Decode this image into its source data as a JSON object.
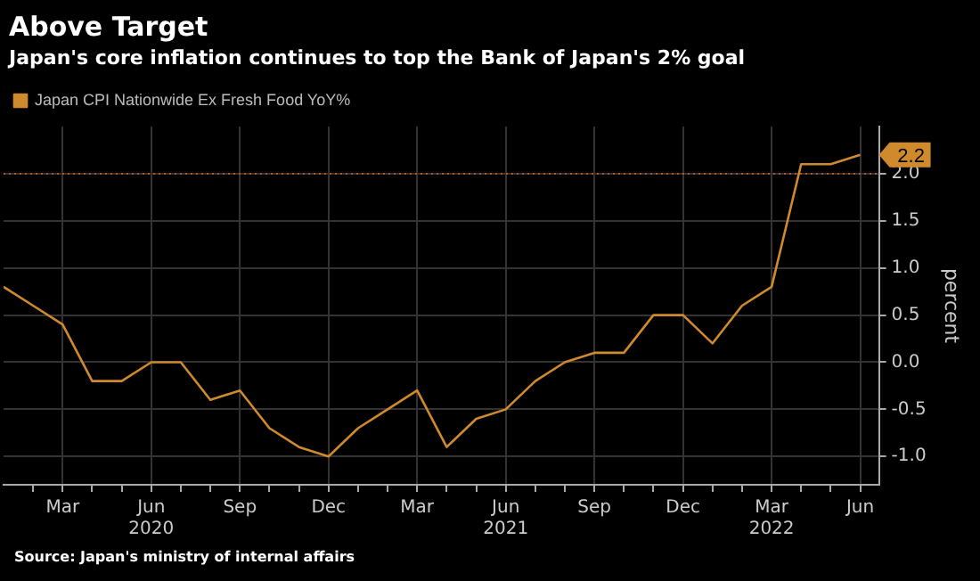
{
  "chart_data": {
    "type": "line",
    "title": "Above Target",
    "subtitle": "Japan's core inflation continues to top the Bank of Japan's 2% goal",
    "ylabel": "percent",
    "x": [
      "2020-01",
      "2020-02",
      "2020-03",
      "2020-04",
      "2020-05",
      "2020-06",
      "2020-07",
      "2020-08",
      "2020-09",
      "2020-10",
      "2020-11",
      "2020-12",
      "2021-01",
      "2021-02",
      "2021-03",
      "2021-04",
      "2021-05",
      "2021-06",
      "2021-07",
      "2021-08",
      "2021-09",
      "2021-10",
      "2021-11",
      "2021-12",
      "2022-01",
      "2022-02",
      "2022-03",
      "2022-04",
      "2022-05",
      "2022-06"
    ],
    "series": [
      {
        "name": "Japan CPI Nationwide Ex Fresh Food YoY%",
        "color": "#d08a2e",
        "values": [
          0.8,
          0.6,
          0.4,
          -0.2,
          -0.2,
          0.0,
          0.0,
          -0.4,
          -0.3,
          -0.7,
          -0.9,
          -1.0,
          -0.7,
          -0.5,
          -0.3,
          -0.9,
          -0.6,
          -0.5,
          -0.2,
          0.0,
          0.1,
          0.1,
          0.5,
          0.5,
          0.2,
          0.6,
          0.8,
          2.1,
          2.1,
          2.2
        ],
        "value_labels": [
          null,
          null,
          null,
          null,
          null,
          null,
          null,
          null,
          null,
          null,
          null,
          null,
          null,
          null,
          null,
          null,
          null,
          null,
          null,
          null,
          null,
          null,
          null,
          null,
          null,
          null,
          null,
          null,
          null,
          "2.2"
        ]
      }
    ],
    "xlim": [
      "2020-01-01",
      "2022-06-20"
    ],
    "xticks": [
      {
        "value": "2020-02",
        "label": null
      },
      {
        "value": "2020-03",
        "label": "Mar"
      },
      {
        "value": "2020-04",
        "label": null
      },
      {
        "value": "2020-05",
        "label": null
      },
      {
        "value": "2020-06",
        "label": "Jun\n2020"
      },
      {
        "value": "2020-07",
        "label": null
      },
      {
        "value": "2020-08",
        "label": null
      },
      {
        "value": "2020-09",
        "label": "Sep"
      },
      {
        "value": "2020-10",
        "label": null
      },
      {
        "value": "2020-11",
        "label": null
      },
      {
        "value": "2020-12",
        "label": "Dec"
      },
      {
        "value": "2021-01",
        "label": null
      },
      {
        "value": "2021-02",
        "label": null
      },
      {
        "value": "2021-03",
        "label": "Mar"
      },
      {
        "value": "2021-04",
        "label": null
      },
      {
        "value": "2021-05",
        "label": null
      },
      {
        "value": "2021-06",
        "label": "Jun\n2021"
      },
      {
        "value": "2021-07",
        "label": null
      },
      {
        "value": "2021-08",
        "label": null
      },
      {
        "value": "2021-09",
        "label": "Sep"
      },
      {
        "value": "2021-10",
        "label": null
      },
      {
        "value": "2021-11",
        "label": null
      },
      {
        "value": "2021-12",
        "label": "Dec"
      },
      {
        "value": "2022-01",
        "label": null
      },
      {
        "value": "2022-02",
        "label": null
      },
      {
        "value": "2022-03",
        "label": "Mar\n2022"
      },
      {
        "value": "2022-04",
        "label": null
      },
      {
        "value": "2022-05",
        "label": null
      },
      {
        "value": "2022-06",
        "label": "Jun"
      }
    ],
    "ylim": [
      -1.3,
      2.5
    ],
    "yticks": [
      {
        "value": -1,
        "label": "-1.0"
      },
      {
        "value": -0.5,
        "label": "-0.5"
      },
      {
        "value": 0,
        "label": "0.0"
      },
      {
        "value": 0.5,
        "label": "0.5"
      },
      {
        "value": 1,
        "label": "1.0"
      },
      {
        "value": 1.5,
        "label": "1.5"
      },
      {
        "value": 2,
        "label": "2.0"
      }
    ],
    "ref_lines": [
      {
        "axis": "y",
        "value": 2,
        "label": null,
        "color": "#b5561c",
        "line_style": "dotted"
      }
    ],
    "grid": true,
    "legend": "top left",
    "marker": "none",
    "line_style": "solid",
    "annotations": [
      "Source: Japan's ministry of internal affairs"
    ]
  }
}
